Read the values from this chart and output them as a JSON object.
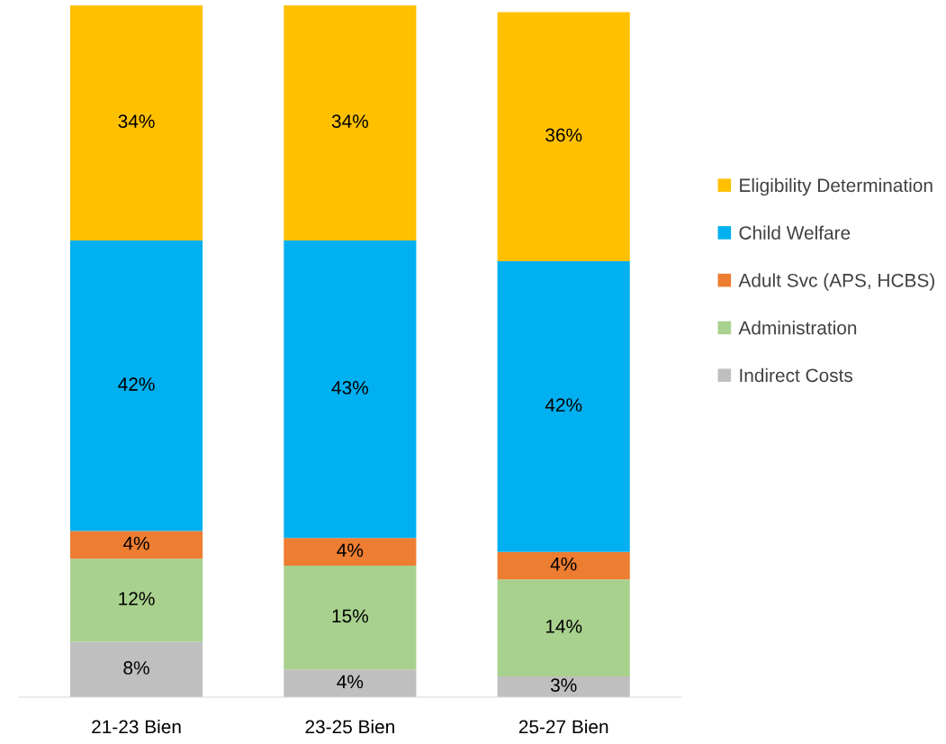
{
  "chart_data": {
    "type": "bar",
    "stacked": true,
    "categories": [
      "21-23 Bien",
      "23-25 Bien",
      "25-27 Bien"
    ],
    "series": [
      {
        "name": "Indirect Costs",
        "color": "#bfbfbf",
        "values": [
          8,
          4,
          3
        ],
        "value_labels": [
          "8%",
          "4%",
          "3%"
        ]
      },
      {
        "name": "Administration",
        "color": "#a9d18e",
        "values": [
          12,
          15,
          14
        ],
        "value_labels": [
          "12%",
          "15%",
          "14%"
        ]
      },
      {
        "name": "Adult Svc (APS, HCBS)",
        "color": "#ed7d31",
        "values": [
          4,
          4,
          4
        ],
        "value_labels": [
          "4%",
          "4%",
          "4%"
        ]
      },
      {
        "name": "Child Welfare",
        "color": "#00b0f0",
        "values": [
          42,
          43,
          42
        ],
        "value_labels": [
          "42%",
          "43%",
          "42%"
        ]
      },
      {
        "name": "Eligibility Determination",
        "color": "#ffc000",
        "values": [
          34,
          34,
          36
        ],
        "value_labels": [
          "34%",
          "34%",
          "36%"
        ]
      }
    ],
    "ylim": [
      0,
      100
    ],
    "tick_labels": "x",
    "grid": false,
    "legend": "right"
  }
}
